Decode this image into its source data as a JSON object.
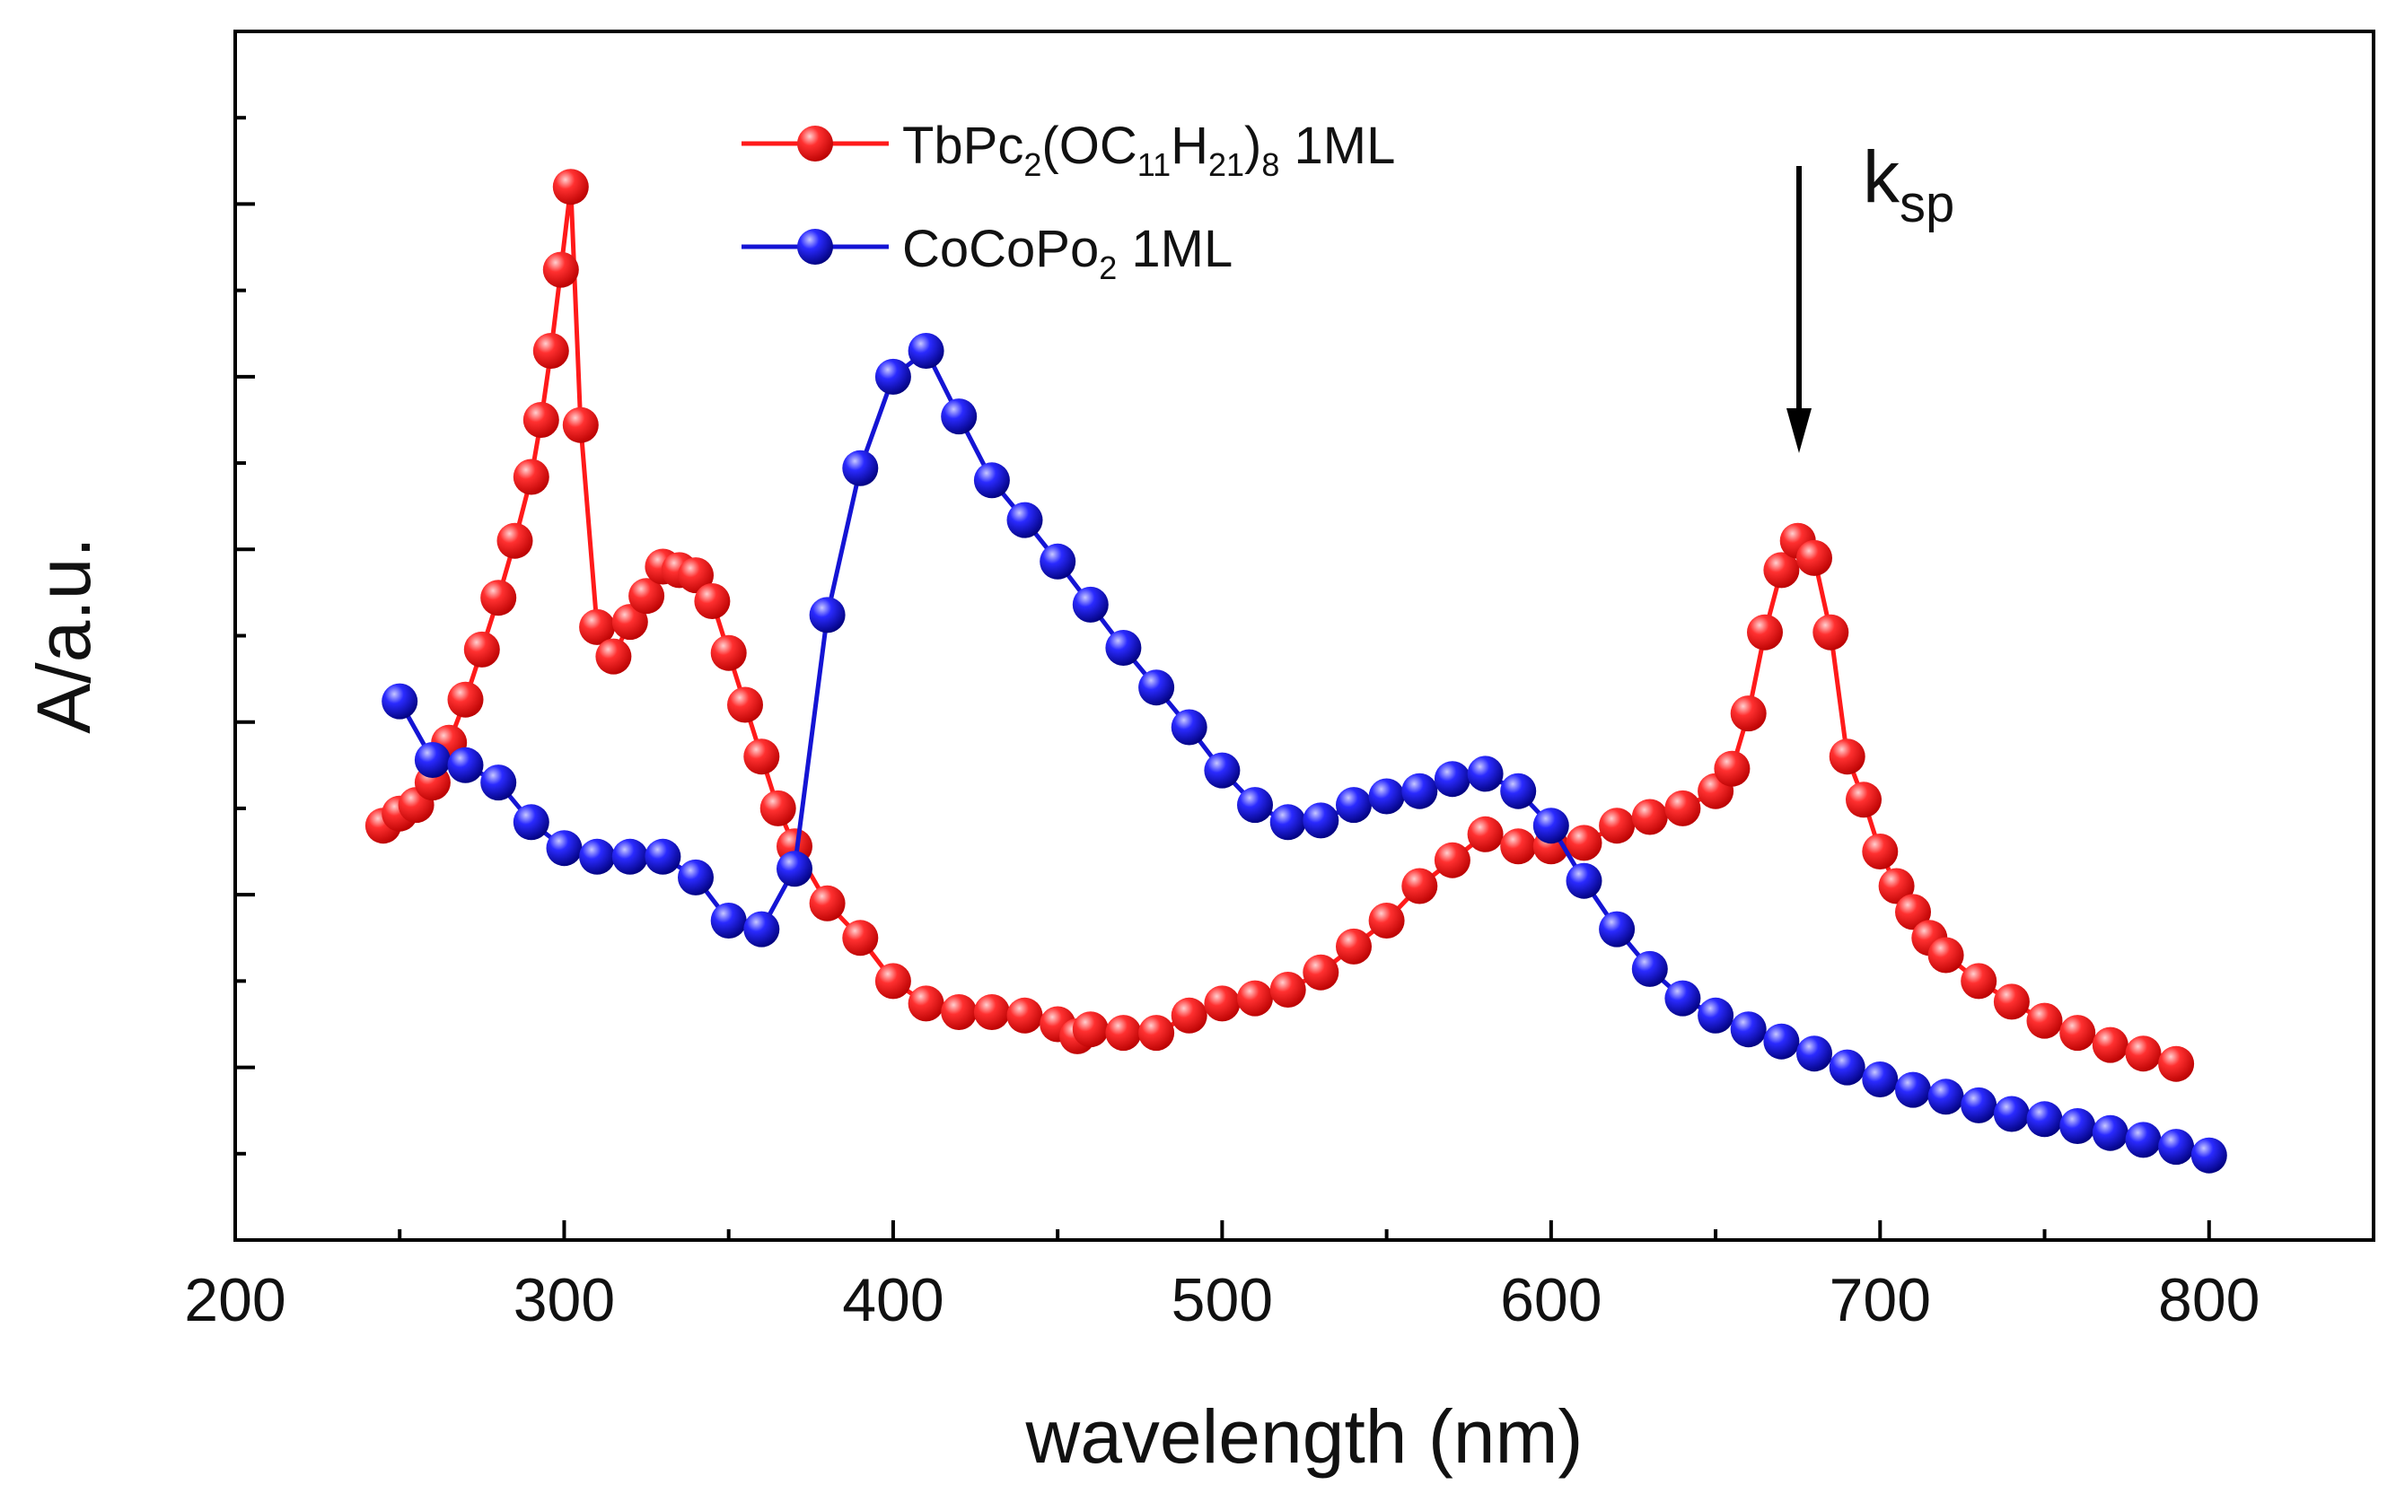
{
  "chart_data": {
    "type": "line",
    "title": "",
    "xlabel": "wavelength (nm)",
    "ylabel": "A/a.u.",
    "xlim": [
      200,
      850
    ],
    "ylim": [
      0,
      7
    ],
    "x_ticks": [
      "200",
      "300",
      "400",
      "500",
      "600",
      "700",
      "800"
    ],
    "y_tick_labels": [],
    "grid": false,
    "legend_position": "top-center",
    "annotation": {
      "text_main": "k",
      "text_sub": "sp",
      "x": 675
    },
    "series": [
      {
        "name": "TbPc2(OC11H21)8 1ML",
        "legend": {
          "t1": "TbPc",
          "s1": "2",
          "t2": "(OC",
          "s2": "11",
          "t3": "H",
          "s3": "21",
          "t4": ")",
          "s4": "8",
          "t5": " 1ML"
        },
        "color": "#ff1a1a",
        "x": [
          245,
          250,
          255,
          260,
          265,
          270,
          275,
          280,
          285,
          290,
          293,
          296,
          299,
          302,
          305,
          310,
          315,
          320,
          325,
          330,
          335,
          340,
          345,
          350,
          355,
          360,
          365,
          370,
          380,
          390,
          400,
          410,
          420,
          430,
          440,
          450,
          456,
          460,
          470,
          480,
          490,
          500,
          510,
          520,
          530,
          540,
          550,
          560,
          570,
          580,
          590,
          600,
          610,
          620,
          630,
          640,
          650,
          655,
          660,
          665,
          670,
          675,
          680,
          685,
          690,
          695,
          700,
          705,
          710,
          715,
          720,
          730,
          740,
          750,
          760,
          770,
          780,
          790
        ],
        "values": [
          2.4,
          2.47,
          2.52,
          2.65,
          2.88,
          3.13,
          3.42,
          3.72,
          4.05,
          4.42,
          4.75,
          5.15,
          5.62,
          6.1,
          4.72,
          3.55,
          3.38,
          3.58,
          3.73,
          3.9,
          3.88,
          3.85,
          3.7,
          3.4,
          3.1,
          2.8,
          2.5,
          2.28,
          1.95,
          1.75,
          1.5,
          1.37,
          1.32,
          1.32,
          1.3,
          1.25,
          1.18,
          1.22,
          1.2,
          1.2,
          1.3,
          1.37,
          1.4,
          1.45,
          1.55,
          1.7,
          1.85,
          2.05,
          2.2,
          2.35,
          2.28,
          2.28,
          2.3,
          2.4,
          2.45,
          2.5,
          2.6,
          2.73,
          3.05,
          3.52,
          3.88,
          4.05,
          3.95,
          3.52,
          2.8,
          2.55,
          2.25,
          2.05,
          1.9,
          1.75,
          1.65,
          1.5,
          1.38,
          1.27,
          1.2,
          1.13,
          1.08,
          1.02
        ]
      },
      {
        "name": "CoCoPo2 1ML",
        "legend": {
          "t1": "CoCoPo",
          "s1": "2",
          "t2": " 1ML"
        },
        "color": "#1414d4",
        "x": [
          250,
          260,
          270,
          280,
          290,
          300,
          310,
          320,
          330,
          340,
          350,
          360,
          370,
          380,
          390,
          400,
          410,
          420,
          430,
          440,
          450,
          460,
          470,
          480,
          490,
          500,
          510,
          520,
          530,
          540,
          550,
          560,
          570,
          580,
          590,
          600,
          610,
          620,
          630,
          640,
          650,
          660,
          670,
          680,
          690,
          700,
          710,
          720,
          730,
          740,
          750,
          760,
          770,
          780,
          790,
          800
        ],
        "values": [
          3.12,
          2.78,
          2.75,
          2.65,
          2.42,
          2.27,
          2.22,
          2.22,
          2.22,
          2.1,
          1.85,
          1.8,
          2.15,
          3.62,
          4.47,
          5.0,
          5.15,
          4.77,
          4.4,
          4.17,
          3.93,
          3.68,
          3.43,
          3.2,
          2.97,
          2.72,
          2.52,
          2.42,
          2.43,
          2.52,
          2.57,
          2.6,
          2.67,
          2.7,
          2.6,
          2.4,
          2.08,
          1.8,
          1.57,
          1.4,
          1.3,
          1.22,
          1.15,
          1.08,
          1.0,
          0.93,
          0.87,
          0.83,
          0.78,
          0.73,
          0.7,
          0.66,
          0.62,
          0.58,
          0.54,
          0.49
        ]
      }
    ]
  }
}
